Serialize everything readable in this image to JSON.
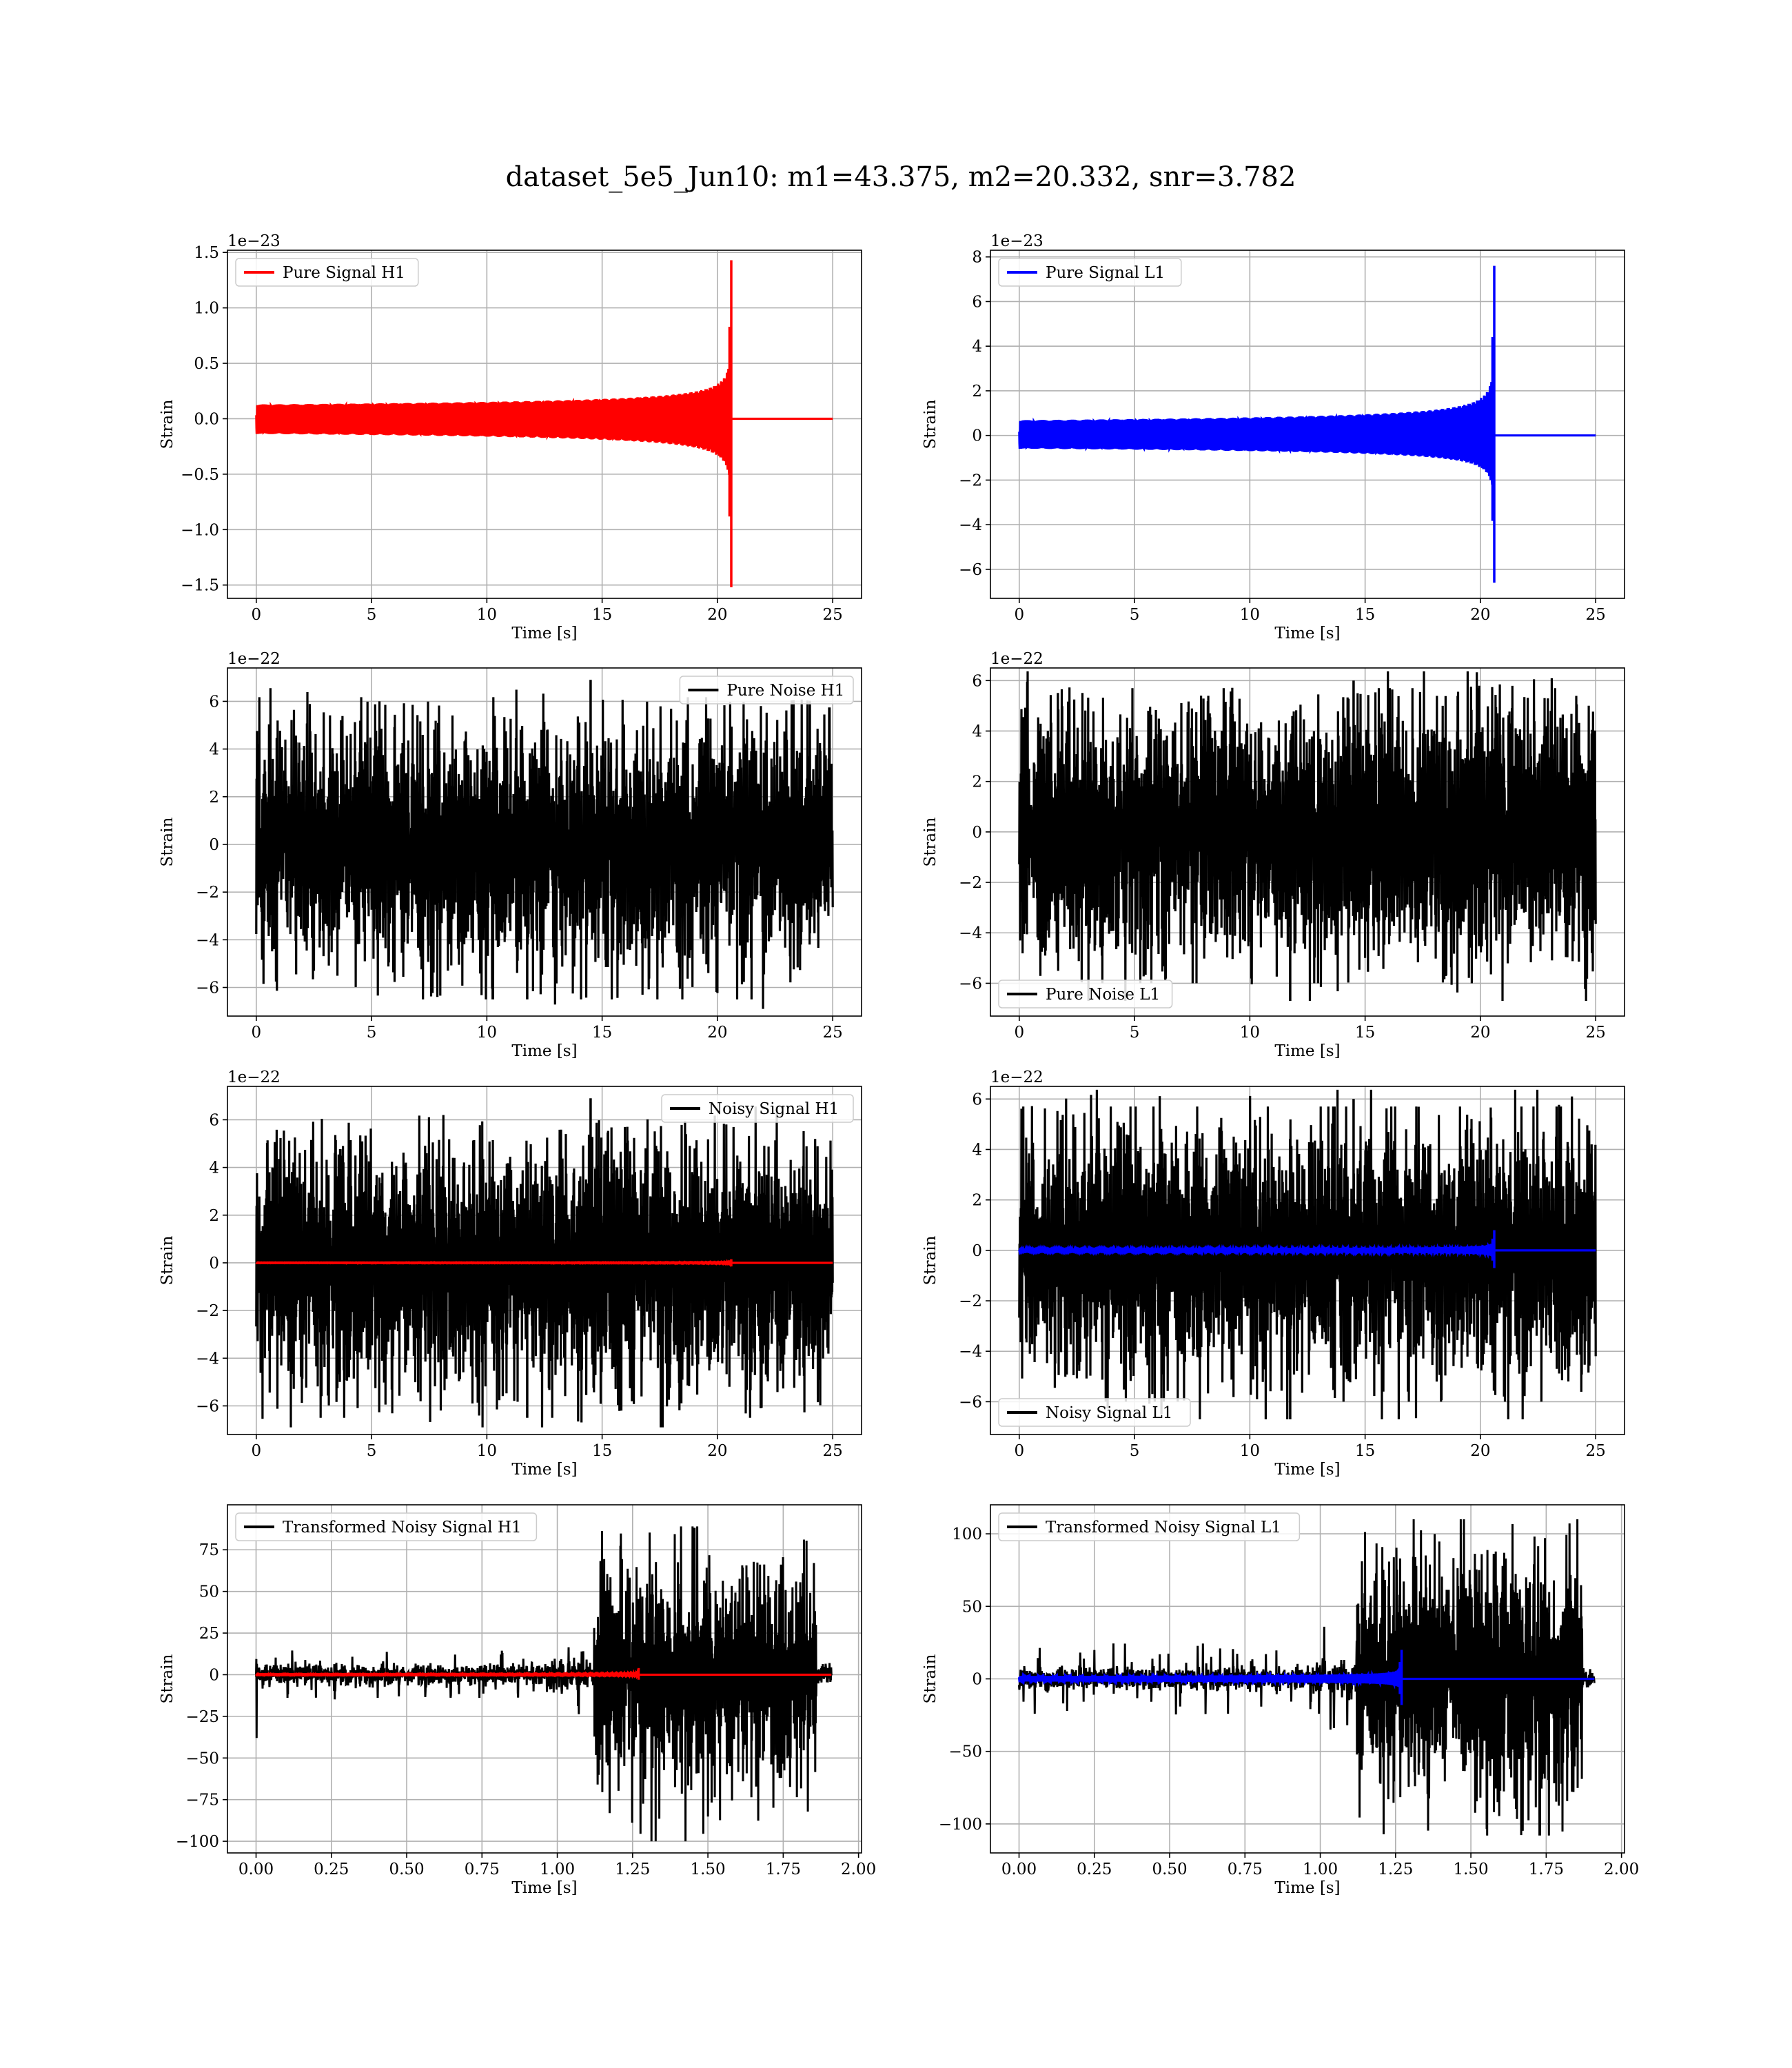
{
  "figure": {
    "title": "dataset_5e5_Jun10: m1=43.375, m2=20.332, snr=3.782"
  },
  "chart_data": [
    {
      "type": "line",
      "id": "pure-signal-h1",
      "xlabel": "Time [s]",
      "ylabel": "Strain",
      "offset_text": "1e−23",
      "xlim": [
        -1.25,
        26.25
      ],
      "ylim": [
        -1.62,
        1.52
      ],
      "xticks": [
        0,
        5,
        10,
        15,
        20,
        25
      ],
      "xtick_labels": [
        "0",
        "5",
        "10",
        "15",
        "20",
        "25"
      ],
      "yticks": [
        -1.5,
        -1.0,
        -0.5,
        0.0,
        0.5,
        1.0,
        1.5
      ],
      "ytick_labels": [
        "−1.5",
        "−1.0",
        "−0.5",
        "0.0",
        "0.5",
        "1.0",
        "1.5"
      ],
      "legend": {
        "position": "upper left",
        "entries": [
          {
            "label": "Pure Signal H1",
            "color": "#ff0000"
          }
        ]
      },
      "series": [
        {
          "name": "Pure Signal H1",
          "color": "#ff0000",
          "kind": "chirp",
          "t_start": 0,
          "t_end": 25,
          "t_merger": 20.6,
          "peak_pos": 1.43,
          "peak_neg": -1.52
        }
      ]
    },
    {
      "type": "line",
      "id": "pure-signal-l1",
      "xlabel": "Time [s]",
      "ylabel": "Strain",
      "offset_text": "1e−23",
      "xlim": [
        -1.25,
        26.25
      ],
      "ylim": [
        -7.3,
        8.3
      ],
      "xticks": [
        0,
        5,
        10,
        15,
        20,
        25
      ],
      "xtick_labels": [
        "0",
        "5",
        "10",
        "15",
        "20",
        "25"
      ],
      "yticks": [
        -6,
        -4,
        -2,
        0,
        2,
        4,
        6,
        8
      ],
      "ytick_labels": [
        "−6",
        "−4",
        "−2",
        "0",
        "2",
        "4",
        "6",
        "8"
      ],
      "legend": {
        "position": "upper left",
        "entries": [
          {
            "label": "Pure Signal L1",
            "color": "#0000ff"
          }
        ]
      },
      "series": [
        {
          "name": "Pure Signal L1",
          "color": "#0000ff",
          "kind": "chirp",
          "t_start": 0,
          "t_end": 25,
          "t_merger": 20.6,
          "peak_pos": 7.6,
          "peak_neg": -6.6
        }
      ]
    },
    {
      "type": "line",
      "id": "pure-noise-h1",
      "xlabel": "Time [s]",
      "ylabel": "Strain",
      "offset_text": "1e−22",
      "xlim": [
        -1.25,
        26.25
      ],
      "ylim": [
        -7.2,
        7.4
      ],
      "xticks": [
        0,
        5,
        10,
        15,
        20,
        25
      ],
      "xtick_labels": [
        "0",
        "5",
        "10",
        "15",
        "20",
        "25"
      ],
      "yticks": [
        -6,
        -4,
        -2,
        0,
        2,
        4,
        6
      ],
      "ytick_labels": [
        "−6",
        "−4",
        "−2",
        "0",
        "2",
        "4",
        "6"
      ],
      "legend": {
        "position": "upper right",
        "entries": [
          {
            "label": "Pure Noise H1",
            "color": "#000000"
          }
        ]
      },
      "series": [
        {
          "name": "Pure Noise H1",
          "color": "#000000",
          "kind": "noise",
          "t_start": 0,
          "t_end": 25,
          "core": 3.3,
          "spike_max": 6.9,
          "spike_min": -6.5
        }
      ]
    },
    {
      "type": "line",
      "id": "pure-noise-l1",
      "xlabel": "Time [s]",
      "ylabel": "Strain",
      "offset_text": "1e−22",
      "xlim": [
        -1.25,
        26.25
      ],
      "ylim": [
        -7.3,
        6.5
      ],
      "xticks": [
        0,
        5,
        10,
        15,
        20,
        25
      ],
      "xtick_labels": [
        "0",
        "5",
        "10",
        "15",
        "20",
        "25"
      ],
      "yticks": [
        -6,
        -4,
        -2,
        0,
        2,
        4,
        6
      ],
      "ytick_labels": [
        "−6",
        "−4",
        "−2",
        "0",
        "2",
        "4",
        "6"
      ],
      "legend": {
        "position": "lower left",
        "entries": [
          {
            "label": "Pure Noise L1",
            "color": "#000000"
          }
        ]
      },
      "series": [
        {
          "name": "Pure Noise L1",
          "color": "#000000",
          "kind": "noise",
          "t_start": 0,
          "t_end": 25,
          "core": 3.3,
          "spike_max": 6.0,
          "spike_min": -6.7
        }
      ]
    },
    {
      "type": "line",
      "id": "noisy-signal-h1",
      "xlabel": "Time [s]",
      "ylabel": "Strain",
      "offset_text": "1e−22",
      "xlim": [
        -1.25,
        26.25
      ],
      "ylim": [
        -7.2,
        7.4
      ],
      "xticks": [
        0,
        5,
        10,
        15,
        20,
        25
      ],
      "xtick_labels": [
        "0",
        "5",
        "10",
        "15",
        "20",
        "25"
      ],
      "yticks": [
        -6,
        -4,
        -2,
        0,
        2,
        4,
        6
      ],
      "ytick_labels": [
        "−6",
        "−4",
        "−2",
        "0",
        "2",
        "4",
        "6"
      ],
      "legend": {
        "position": "upper right",
        "entries": [
          {
            "label": "Noisy Signal H1",
            "color": "#000000"
          }
        ]
      },
      "series": [
        {
          "name": "Noisy Signal H1",
          "color": "#000000",
          "kind": "noise",
          "t_start": 0,
          "t_end": 25,
          "core": 3.3,
          "spike_max": 6.9,
          "spike_min": -6.5
        },
        {
          "color": "#ff0000",
          "kind": "chirp",
          "t_start": 0,
          "t_end": 25,
          "t_merger": 20.6,
          "peak_pos": 0.15,
          "peak_neg": -0.15
        }
      ]
    },
    {
      "type": "line",
      "id": "noisy-signal-l1",
      "xlabel": "Time [s]",
      "ylabel": "Strain",
      "offset_text": "1e−22",
      "xlim": [
        -1.25,
        26.25
      ],
      "ylim": [
        -7.3,
        6.5
      ],
      "xticks": [
        0,
        5,
        10,
        15,
        20,
        25
      ],
      "xtick_labels": [
        "0",
        "5",
        "10",
        "15",
        "20",
        "25"
      ],
      "yticks": [
        -6,
        -4,
        -2,
        0,
        2,
        4,
        6
      ],
      "ytick_labels": [
        "−6",
        "−4",
        "−2",
        "0",
        "2",
        "4",
        "6"
      ],
      "legend": {
        "position": "lower left",
        "entries": [
          {
            "label": "Noisy Signal L1",
            "color": "#000000"
          }
        ]
      },
      "series": [
        {
          "name": "Noisy Signal L1",
          "color": "#000000",
          "kind": "noise",
          "t_start": 0,
          "t_end": 25,
          "core": 3.3,
          "spike_max": 6.0,
          "spike_min": -6.7
        },
        {
          "color": "#0000ff",
          "kind": "chirp",
          "t_start": 0,
          "t_end": 25,
          "t_merger": 20.6,
          "peak_pos": 0.8,
          "peak_neg": -0.7
        }
      ]
    },
    {
      "type": "line",
      "id": "transformed-noisy-signal-h1",
      "xlabel": "Time [s]",
      "ylabel": "Strain",
      "offset_text": "",
      "xlim": [
        -0.095,
        2.01
      ],
      "ylim": [
        -107,
        102
      ],
      "xticks": [
        0,
        0.25,
        0.5,
        0.75,
        1.0,
        1.25,
        1.5,
        1.75,
        2.0
      ],
      "xtick_labels": [
        "0.00",
        "0.25",
        "0.50",
        "0.75",
        "1.00",
        "1.25",
        "1.50",
        "1.75",
        "2.00"
      ],
      "yticks": [
        -100,
        -75,
        -50,
        -25,
        0,
        25,
        50,
        75
      ],
      "ytick_labels": [
        "−100",
        "−75",
        "−50",
        "−25",
        "0",
        "25",
        "50",
        "75"
      ],
      "legend": {
        "position": "upper left",
        "entries": [
          {
            "label": "Transformed Noisy Signal H1",
            "color": "#000000"
          }
        ]
      },
      "series": [
        {
          "name": "Transformed Noisy Signal H1",
          "color": "#000000",
          "kind": "whitened",
          "t_start": 0,
          "t_end": 1.91,
          "t_step": 1.12,
          "pre_core": 5,
          "pre_spike": 15,
          "post_core": 42,
          "post_spike_max": 89,
          "post_spike_min": -100,
          "t_drop": 1.86,
          "initial_dip": -38
        },
        {
          "color": "#ff0000",
          "kind": "chirp",
          "t_start": 0,
          "t_end": 1.91,
          "t_merger": 1.27,
          "peak_pos": 4,
          "peak_neg": -3
        }
      ]
    },
    {
      "type": "line",
      "id": "transformed-noisy-signal-l1",
      "xlabel": "Time [s]",
      "ylabel": "Strain",
      "offset_text": "",
      "xlim": [
        -0.095,
        2.01
      ],
      "ylim": [
        -120,
        120
      ],
      "xticks": [
        0,
        0.25,
        0.5,
        0.75,
        1.0,
        1.25,
        1.5,
        1.75,
        2.0
      ],
      "xtick_labels": [
        "0.00",
        "0.25",
        "0.50",
        "0.75",
        "1.00",
        "1.25",
        "1.50",
        "1.75",
        "2.00"
      ],
      "yticks": [
        -100,
        -50,
        0,
        50,
        100
      ],
      "ytick_labels": [
        "−100",
        "−50",
        "0",
        "50",
        "100"
      ],
      "legend": {
        "position": "upper left",
        "entries": [
          {
            "label": "Transformed Noisy Signal L1",
            "color": "#000000"
          }
        ]
      },
      "series": [
        {
          "name": "Transformed Noisy Signal L1",
          "color": "#000000",
          "kind": "whitened",
          "t_start": 0,
          "t_end": 1.91,
          "t_step": 1.12,
          "pre_core": 6,
          "pre_spike": 25,
          "post_core": 52,
          "post_spike_max": 110,
          "post_spike_min": -108,
          "t_drop": 1.87,
          "initial_dip": -6
        },
        {
          "color": "#0000ff",
          "kind": "chirp",
          "t_start": 0,
          "t_end": 1.91,
          "t_merger": 1.27,
          "peak_pos": 20,
          "peak_neg": -18
        }
      ]
    }
  ]
}
